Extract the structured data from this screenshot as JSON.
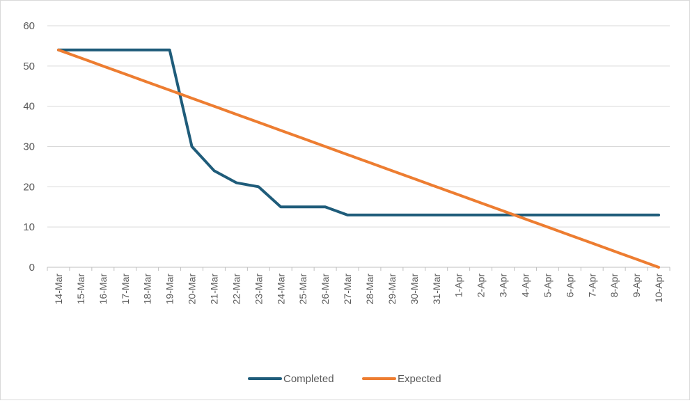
{
  "chart_data": {
    "type": "line",
    "title": "",
    "xlabel": "",
    "ylabel": "",
    "ylim": [
      0,
      60
    ],
    "y_ticks": [
      0,
      10,
      20,
      30,
      40,
      50,
      60
    ],
    "grid": true,
    "legend_position": "bottom",
    "categories": [
      "14-Mar",
      "15-Mar",
      "16-Mar",
      "17-Mar",
      "18-Mar",
      "19-Mar",
      "20-Mar",
      "21-Mar",
      "22-Mar",
      "23-Mar",
      "24-Mar",
      "25-Mar",
      "26-Mar",
      "27-Mar",
      "28-Mar",
      "29-Mar",
      "30-Mar",
      "31-Mar",
      "1-Apr",
      "2-Apr",
      "3-Apr",
      "4-Apr",
      "5-Apr",
      "6-Apr",
      "7-Apr",
      "8-Apr",
      "9-Apr",
      "10-Apr"
    ],
    "series": [
      {
        "name": "Completed",
        "color": "#1f5c7a",
        "values": [
          54,
          54,
          54,
          54,
          54,
          54,
          30,
          24,
          21,
          20,
          15,
          15,
          15,
          13,
          13,
          13,
          13,
          13,
          13,
          13,
          13,
          13,
          13,
          13,
          13,
          13,
          13,
          13
        ]
      },
      {
        "name": "Expected",
        "color": "#ed7d31",
        "values": [
          54,
          52,
          50,
          48,
          46,
          44,
          42,
          40,
          38,
          36,
          34,
          32,
          30,
          28,
          26,
          24,
          22,
          20,
          18,
          16,
          14,
          12,
          10,
          8,
          6,
          4,
          2,
          0
        ]
      }
    ]
  }
}
